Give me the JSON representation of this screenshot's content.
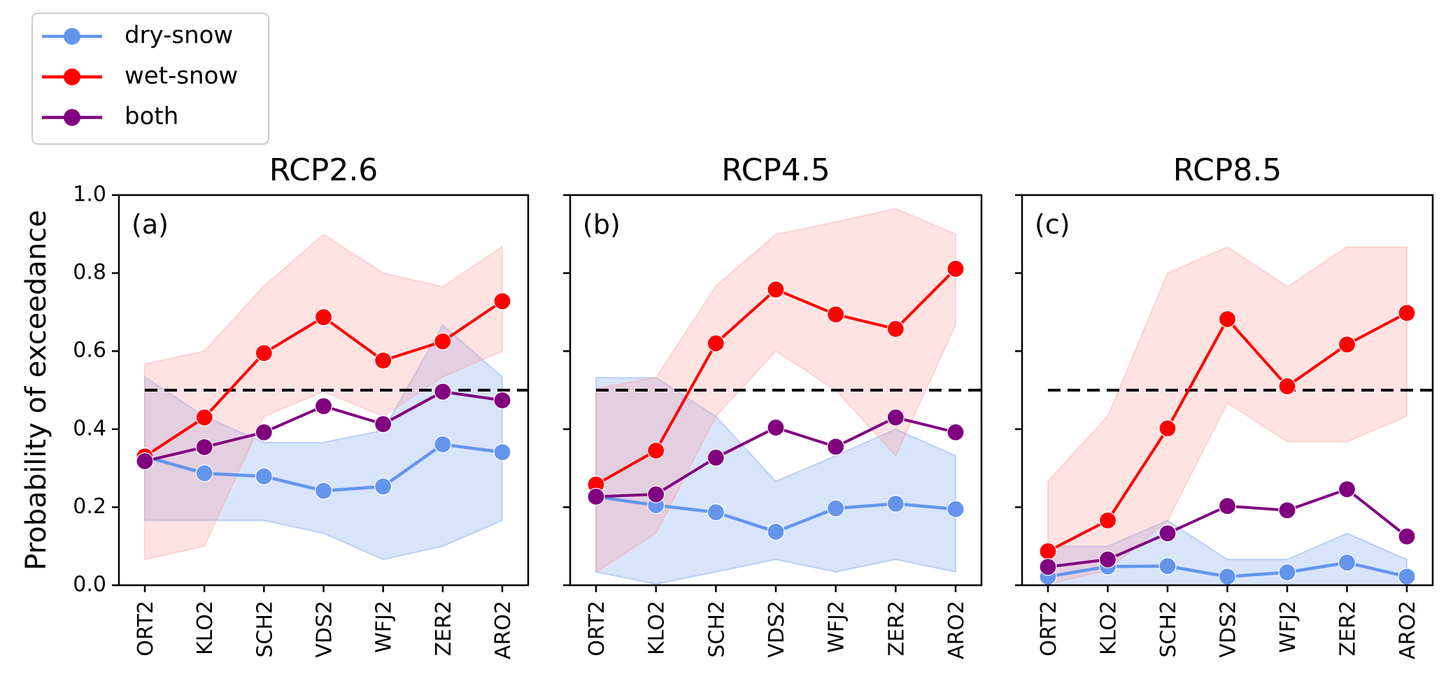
{
  "chart_data": {
    "type": "line",
    "ylabel": "Probability of exceedance",
    "ylim": [
      0.0,
      1.0
    ],
    "yticks": [
      "0.0",
      "0.2",
      "0.4",
      "0.6",
      "0.8",
      "1.0"
    ],
    "categories": [
      "ORT2",
      "KLO2",
      "SCH2",
      "VDS2",
      "WFJ2",
      "ZER2",
      "ARO2"
    ],
    "reference_line": {
      "y": 0.5,
      "style": "dashed",
      "color": "#000000"
    },
    "legend": {
      "placement": "top-left (outside axes)",
      "entries": [
        {
          "label": "dry-snow",
          "color": "#6495ED"
        },
        {
          "label": "wet-snow",
          "color": "#FF0000"
        },
        {
          "label": "both",
          "color": "#800080"
        }
      ]
    },
    "band_colors": {
      "dry-snow": "#6495ED",
      "wet-snow": "#FF9999"
    },
    "panels": [
      {
        "title": "RCP2.6",
        "tag": "(a)",
        "series": [
          {
            "name": "dry-snow",
            "values": [
              0.33,
              0.287,
              0.279,
              0.242,
              0.253,
              0.361,
              0.341
            ],
            "band_upper": [
              0.534,
              0.433,
              0.366,
              0.366,
              0.397,
              0.667,
              0.534
            ],
            "band_lower": [
              0.166,
              0.166,
              0.166,
              0.133,
              0.066,
              0.1,
              0.166
            ]
          },
          {
            "name": "wet-snow",
            "values": [
              0.33,
              0.43,
              0.595,
              0.687,
              0.576,
              0.625,
              0.728
            ],
            "band_upper": [
              0.567,
              0.6,
              0.767,
              0.899,
              0.8,
              0.765,
              0.868
            ],
            "band_lower": [
              0.066,
              0.1,
              0.433,
              0.496,
              0.433,
              0.534,
              0.6
            ]
          },
          {
            "name": "both",
            "values": [
              0.318,
              0.354,
              0.392,
              0.459,
              0.413,
              0.496,
              0.474
            ]
          }
        ]
      },
      {
        "title": "RCP4.5",
        "tag": "(b)",
        "series": [
          {
            "name": "dry-snow",
            "values": [
              0.227,
              0.205,
              0.187,
              0.137,
              0.197,
              0.209,
              0.195
            ],
            "band_upper": [
              0.532,
              0.532,
              0.433,
              0.266,
              0.332,
              0.4,
              0.332
            ],
            "band_lower": [
              0.034,
              0.003,
              0.034,
              0.066,
              0.034,
              0.066,
              0.034
            ]
          },
          {
            "name": "wet-snow",
            "values": [
              0.258,
              0.345,
              0.62,
              0.758,
              0.694,
              0.657,
              0.811
            ],
            "band_upper": [
              0.504,
              0.532,
              0.767,
              0.899,
              0.931,
              0.965,
              0.9
            ],
            "band_lower": [
              0.034,
              0.133,
              0.433,
              0.6,
              0.5,
              0.332,
              0.667
            ]
          },
          {
            "name": "both",
            "values": [
              0.227,
              0.233,
              0.327,
              0.404,
              0.355,
              0.43,
              0.392
            ]
          }
        ]
      },
      {
        "title": "RCP8.5",
        "tag": "(c)",
        "series": [
          {
            "name": "dry-snow",
            "values": [
              0.022,
              0.048,
              0.049,
              0.022,
              0.033,
              0.058,
              0.022
            ],
            "band_upper": [
              0.1,
              0.1,
              0.166,
              0.066,
              0.066,
              0.133,
              0.066
            ],
            "band_lower": [
              0.0,
              0.0,
              0.0,
              0.0,
              0.0,
              0.0,
              0.0
            ]
          },
          {
            "name": "wet-snow",
            "values": [
              0.087,
              0.166,
              0.402,
              0.682,
              0.51,
              0.617,
              0.698
            ],
            "band_upper": [
              0.267,
              0.433,
              0.8,
              0.867,
              0.765,
              0.867,
              0.867
            ],
            "band_lower": [
              0.003,
              0.038,
              0.166,
              0.467,
              0.368,
              0.368,
              0.433
            ]
          },
          {
            "name": "both",
            "values": [
              0.047,
              0.066,
              0.133,
              0.203,
              0.192,
              0.246,
              0.125
            ]
          }
        ]
      }
    ]
  }
}
